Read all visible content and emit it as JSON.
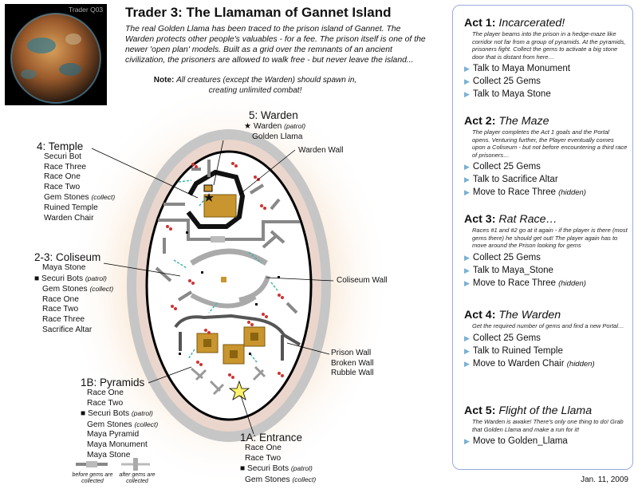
{
  "planet": {
    "tag": "Trader Q03"
  },
  "header": {
    "title": "Trader 3: The Llamaman of Gannet Island",
    "intro": "The real Golden Llama has been traced to the prison island of Gannet. The Warden protects other people's valuables - for a fee. The prison itself is one of the newer 'open plan' models. Built as a grid over the remnants of an ancient civilization, the prisoners are allowed to walk free - but never leave the island...",
    "note_label": "Note:",
    "note_text": "All creatures (except the Warden) should spawn in, creating unlimited combat!"
  },
  "map": {
    "warden": {
      "title": "5: Warden",
      "items": [
        "Warden",
        "Golden Llama"
      ],
      "patrol": "(patrol)"
    },
    "temple": {
      "title": "4: Temple",
      "items": [
        "Securi Bot",
        "Race Three",
        "Race One",
        "Race Two",
        "Gem Stones",
        "Ruined Temple",
        "Warden Chair"
      ],
      "collect": "(collect)"
    },
    "coliseum": {
      "title": "2-3: Coliseum",
      "items": [
        "Maya Stone",
        "Securi Bots",
        "Gem Stones",
        "Race One",
        "Race Two",
        "Race Three",
        "Sacrifice Altar"
      ],
      "patrol": "(patrol)",
      "collect": "(collect)"
    },
    "pyramids": {
      "title": "1B: Pyramids",
      "items": [
        "Race One",
        "Race Two",
        "Securi Bots",
        "Gem Stones",
        "Maya Pyramid",
        "Maya Monument",
        "Maya Stone"
      ],
      "patrol": "(patrol)",
      "collect": "(collect)"
    },
    "entrance": {
      "title": "1A: Entrance",
      "items": [
        "Race One",
        "Race Two",
        "Securi Bots",
        "Gem Stones"
      ],
      "patrol": "(patrol)",
      "collect": "(collect)"
    },
    "walls": {
      "warden_wall": "Warden Wall",
      "coliseum_wall": "Coliseum Wall",
      "prison_wall": "Prison Wall",
      "broken_wall": "Broken Wall",
      "rubble_wall": "Rubble Wall"
    },
    "legend": {
      "before": "before gems are collected",
      "after": "after gems are collected"
    }
  },
  "acts": [
    {
      "num": "Act 1:",
      "name": "Incarcerated!",
      "desc": "The player beams into the prison in a hedge-maze like corridor not far from a group of pyramids. At the pyramids, prisoners fight. Collect the gems to activate a big stone door that is distant from here…",
      "tasks": [
        "Talk to Maya Monument",
        "Collect 25 Gems",
        "Talk to Maya Stone"
      ]
    },
    {
      "num": "Act 2:",
      "name": "The Maze",
      "desc": "The player completes the Act 1 goals and the Portal opens. Venturing further, the Player eventually comes upon a Coliseum - but not before encountering a third race of prisoners…",
      "tasks": [
        "Collect 25 Gems",
        "Talk to Sacrifice Altar",
        "Move to Race Three"
      ],
      "hidden": "(hidden)"
    },
    {
      "num": "Act 3:",
      "name": "Rat Race…",
      "desc": "Races #1 and #2 go at it again - if the player is there (most gems there) he should get out! The player again has to move around the Prison looking for gems",
      "tasks": [
        "Collect 25 Gems",
        "Talk to Maya_Stone",
        "Move to Race Three"
      ],
      "hidden": "(hidden)"
    },
    {
      "num": "Act 4:",
      "name": "The Warden",
      "desc": "Get the required number of gems and find a new Portal…",
      "tasks": [
        "Collect 25 Gems",
        "Talk to Ruined Temple",
        "Move to Warden Chair"
      ],
      "hidden": "(hidden)"
    },
    {
      "num": "Act 5:",
      "name": "Flight of the Llama",
      "desc": "The Warden is awake! There's only one thing to do! Grab that Golden Llama and make a run for it!",
      "tasks": [
        "Move to Golden_Llama"
      ]
    }
  ],
  "footer": {
    "date": "Jan. 11, 2009"
  }
}
